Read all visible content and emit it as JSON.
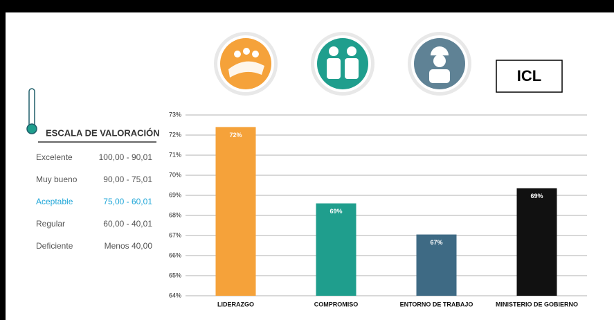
{
  "chart_data": {
    "type": "bar",
    "categories": [
      "LIDERAZGO",
      "COMPROMISO",
      "ENTORNO DE TRABAJO",
      "MINISTERIO DE GOBIERNO"
    ],
    "values": [
      72.4,
      68.6,
      67.05,
      69.35
    ],
    "value_labels": [
      "72%",
      "69%",
      "67%",
      "69%"
    ],
    "colors": [
      "#f5a23a",
      "#1f9e8d",
      "#3e6a84",
      "#111111"
    ],
    "ylim": [
      64,
      73
    ],
    "yticks": [
      {
        "value": 64,
        "label": "64%"
      },
      {
        "value": 65,
        "label": "65%"
      },
      {
        "value": 66,
        "label": "66%"
      },
      {
        "value": 67,
        "label": "67%"
      },
      {
        "value": 68,
        "label": "68%"
      },
      {
        "value": 69,
        "label": "69%"
      },
      {
        "value": 70,
        "label": "70%"
      },
      {
        "value": 71,
        "label": "71%"
      },
      {
        "value": 72,
        "label": "72%"
      },
      {
        "value": 73,
        "label": "73%"
      }
    ],
    "grid": true
  },
  "icl": "ICL",
  "scale": {
    "title": "ESCALA DE VALORACIÓN",
    "rows": [
      [
        "Excelente",
        "100,00 - 90,01"
      ],
      [
        "Muy bueno",
        "90,00 - 75,01"
      ],
      [
        "Aceptable",
        "75,00 - 60,01"
      ],
      [
        "Regular",
        "60,00 - 40,01"
      ],
      [
        "Deficiente",
        "Menos 40,00"
      ]
    ],
    "highlight_row": 2,
    "highlight_color": "#1fa6d8"
  }
}
